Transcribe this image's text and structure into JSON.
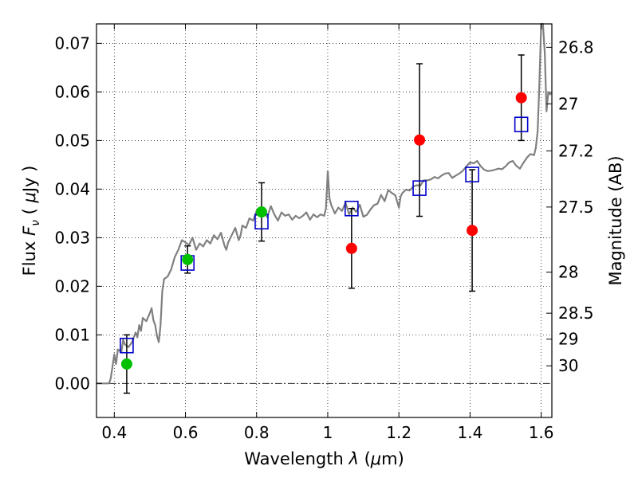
{
  "chart_data": {
    "type": "scatter",
    "xlabel": "Wavelength  λ (μm)",
    "ylabel": "Flux  F_ν  ( μJy )",
    "ylabel_parts": {
      "pre": "Flux  ",
      "var": "F",
      "sub": "ν",
      "post": "  ( ",
      "mu": "μ",
      "unit": "Jy )"
    },
    "xlabel_parts": {
      "pre": "Wavelength  ",
      "var": "λ",
      "post": " (",
      "mu": "μ",
      "unit": "m)"
    },
    "y2label": "Magnitude (AB)",
    "xlim": [
      0.35,
      1.63
    ],
    "ylim": [
      -0.007,
      0.074
    ],
    "grid": true,
    "x_ticks": [
      0.4,
      0.6,
      0.8,
      1.0,
      1.2,
      1.4,
      1.6
    ],
    "x_tick_labels": [
      "0.4",
      "0.6",
      "0.8",
      "1",
      "1.2",
      "1.4",
      "1.6"
    ],
    "y_ticks": [
      0.0,
      0.01,
      0.02,
      0.03,
      0.04,
      0.05,
      0.06,
      0.07
    ],
    "y_tick_labels": [
      "0.00",
      "0.01",
      "0.02",
      "0.03",
      "0.04",
      "0.05",
      "0.06",
      "0.07"
    ],
    "mag_ticks": [
      26.8,
      27.0,
      27.2,
      27.5,
      28.0,
      28.5,
      29.0,
      30.0
    ],
    "mag_tick_labels": [
      "26.8",
      "27",
      "27.2",
      "27.5",
      "28",
      "28.5",
      "29",
      "30"
    ],
    "series": [
      {
        "marker": "filled-circle",
        "color": "#00c000",
        "points": [
          {
            "x": 0.435,
            "y": 0.004,
            "yerr": [
              0.006,
              0.006
            ]
          },
          {
            "x": 0.606,
            "y": 0.0255,
            "yerr": [
              0.0028,
              0.0028
            ]
          },
          {
            "x": 0.814,
            "y": 0.0353,
            "yerr": [
              0.006,
              0.006
            ]
          }
        ]
      },
      {
        "marker": "filled-circle",
        "color": "#ff0000",
        "points": [
          {
            "x": 1.067,
            "y": 0.0278,
            "yerr": [
              0.0082,
              0.0082
            ]
          },
          {
            "x": 1.258,
            "y": 0.0501,
            "yerr": [
              0.0157,
              0.0157
            ]
          },
          {
            "x": 1.406,
            "y": 0.0315,
            "yerr": [
              0.0125,
              0.0125
            ]
          },
          {
            "x": 1.544,
            "y": 0.0588,
            "yerr": [
              0.0088,
              0.0088
            ]
          }
        ]
      },
      {
        "marker": "open-square",
        "color": "#0000cc",
        "points": [
          {
            "x": 0.435,
            "y": 0.0078
          },
          {
            "x": 0.606,
            "y": 0.0248
          },
          {
            "x": 0.814,
            "y": 0.0333
          },
          {
            "x": 1.067,
            "y": 0.036
          },
          {
            "x": 1.258,
            "y": 0.0402
          },
          {
            "x": 1.406,
            "y": 0.043
          },
          {
            "x": 1.544,
            "y": 0.0533
          }
        ]
      },
      {
        "marker": "line",
        "color": "#808080",
        "points": [
          [
            0.35,
            0.0
          ],
          [
            0.385,
            0.0
          ],
          [
            0.39,
            0.001
          ],
          [
            0.395,
            0.0035
          ],
          [
            0.4,
            0.006
          ],
          [
            0.405,
            0.004
          ],
          [
            0.41,
            0.007
          ],
          [
            0.42,
            0.0065
          ],
          [
            0.425,
            0.009
          ],
          [
            0.43,
            0.008
          ],
          [
            0.44,
            0.0075
          ],
          [
            0.45,
            0.0085
          ],
          [
            0.46,
            0.0105
          ],
          [
            0.465,
            0.0095
          ],
          [
            0.47,
            0.012
          ],
          [
            0.475,
            0.0108
          ],
          [
            0.48,
            0.0135
          ],
          [
            0.49,
            0.0128
          ],
          [
            0.5,
            0.0145
          ],
          [
            0.505,
            0.0155
          ],
          [
            0.51,
            0.013
          ],
          [
            0.515,
            0.012
          ],
          [
            0.52,
            0.0098
          ],
          [
            0.525,
            0.0085
          ],
          [
            0.53,
            0.012
          ],
          [
            0.535,
            0.019
          ],
          [
            0.54,
            0.0215
          ],
          [
            0.55,
            0.022
          ],
          [
            0.56,
            0.0235
          ],
          [
            0.57,
            0.026
          ],
          [
            0.58,
            0.0275
          ],
          [
            0.59,
            0.0295
          ],
          [
            0.6,
            0.029
          ],
          [
            0.61,
            0.0285
          ],
          [
            0.62,
            0.03
          ],
          [
            0.63,
            0.0275
          ],
          [
            0.64,
            0.0288
          ],
          [
            0.65,
            0.0282
          ],
          [
            0.66,
            0.0295
          ],
          [
            0.67,
            0.0288
          ],
          [
            0.68,
            0.0305
          ],
          [
            0.69,
            0.0297
          ],
          [
            0.7,
            0.031
          ],
          [
            0.71,
            0.0283
          ],
          [
            0.715,
            0.0275
          ],
          [
            0.72,
            0.029
          ],
          [
            0.73,
            0.0305
          ],
          [
            0.74,
            0.032
          ],
          [
            0.75,
            0.0295
          ],
          [
            0.755,
            0.0305
          ],
          [
            0.76,
            0.0325
          ],
          [
            0.77,
            0.032
          ],
          [
            0.78,
            0.034
          ],
          [
            0.79,
            0.0335
          ],
          [
            0.8,
            0.0355
          ],
          [
            0.81,
            0.036
          ],
          [
            0.815,
            0.0345
          ],
          [
            0.82,
            0.0355
          ],
          [
            0.83,
            0.0342
          ],
          [
            0.84,
            0.0365
          ],
          [
            0.85,
            0.0348
          ],
          [
            0.86,
            0.0335
          ],
          [
            0.87,
            0.0352
          ],
          [
            0.88,
            0.0345
          ],
          [
            0.89,
            0.0348
          ],
          [
            0.9,
            0.0337
          ],
          [
            0.91,
            0.0345
          ],
          [
            0.92,
            0.034
          ],
          [
            0.93,
            0.0345
          ],
          [
            0.94,
            0.0352
          ],
          [
            0.95,
            0.0337
          ],
          [
            0.96,
            0.0348
          ],
          [
            0.97,
            0.0342
          ],
          [
            0.98,
            0.0348
          ],
          [
            0.99,
            0.0345
          ],
          [
            0.995,
            0.036
          ],
          [
            1.0,
            0.0437
          ],
          [
            1.005,
            0.038
          ],
          [
            1.01,
            0.0367
          ],
          [
            1.02,
            0.035
          ],
          [
            1.03,
            0.0362
          ],
          [
            1.04,
            0.0355
          ],
          [
            1.05,
            0.0372
          ],
          [
            1.06,
            0.0348
          ],
          [
            1.07,
            0.0362
          ],
          [
            1.08,
            0.0353
          ],
          [
            1.09,
            0.0368
          ],
          [
            1.1,
            0.0343
          ],
          [
            1.11,
            0.0347
          ],
          [
            1.12,
            0.0358
          ],
          [
            1.13,
            0.0367
          ],
          [
            1.14,
            0.037
          ],
          [
            1.15,
            0.0388
          ],
          [
            1.16,
            0.0375
          ],
          [
            1.17,
            0.0398
          ],
          [
            1.18,
            0.0392
          ],
          [
            1.19,
            0.0387
          ],
          [
            1.195,
            0.0375
          ],
          [
            1.2,
            0.0362
          ],
          [
            1.205,
            0.0385
          ],
          [
            1.21,
            0.0392
          ],
          [
            1.22,
            0.0399
          ],
          [
            1.23,
            0.0397
          ],
          [
            1.24,
            0.0405
          ],
          [
            1.25,
            0.0408
          ],
          [
            1.26,
            0.0407
          ],
          [
            1.27,
            0.0418
          ],
          [
            1.28,
            0.0418
          ],
          [
            1.29,
            0.042
          ],
          [
            1.3,
            0.0425
          ],
          [
            1.31,
            0.0422
          ],
          [
            1.32,
            0.0428
          ],
          [
            1.33,
            0.0432
          ],
          [
            1.34,
            0.0433
          ],
          [
            1.35,
            0.0423
          ],
          [
            1.36,
            0.0428
          ],
          [
            1.37,
            0.0432
          ],
          [
            1.38,
            0.0438
          ],
          [
            1.39,
            0.0447
          ],
          [
            1.4,
            0.0455
          ],
          [
            1.41,
            0.0453
          ],
          [
            1.42,
            0.0458
          ],
          [
            1.43,
            0.0447
          ],
          [
            1.44,
            0.044
          ],
          [
            1.45,
            0.0437
          ],
          [
            1.46,
            0.0438
          ],
          [
            1.47,
            0.044
          ],
          [
            1.48,
            0.0442
          ],
          [
            1.49,
            0.0441
          ],
          [
            1.5,
            0.0447
          ],
          [
            1.51,
            0.0455
          ],
          [
            1.52,
            0.0458
          ],
          [
            1.53,
            0.0448
          ],
          [
            1.54,
            0.0442
          ],
          [
            1.55,
            0.0454
          ],
          [
            1.56,
            0.0465
          ],
          [
            1.57,
            0.0472
          ],
          [
            1.58,
            0.047
          ],
          [
            1.585,
            0.0485
          ],
          [
            1.59,
            0.052
          ],
          [
            1.595,
            0.062
          ],
          [
            1.6,
            0.074
          ],
          [
            1.605,
            0.074
          ],
          [
            1.61,
            0.068
          ],
          [
            1.615,
            0.056
          ],
          [
            1.62,
            0.06
          ],
          [
            1.625,
            0.0595
          ],
          [
            1.63,
            0.06
          ]
        ]
      }
    ]
  }
}
